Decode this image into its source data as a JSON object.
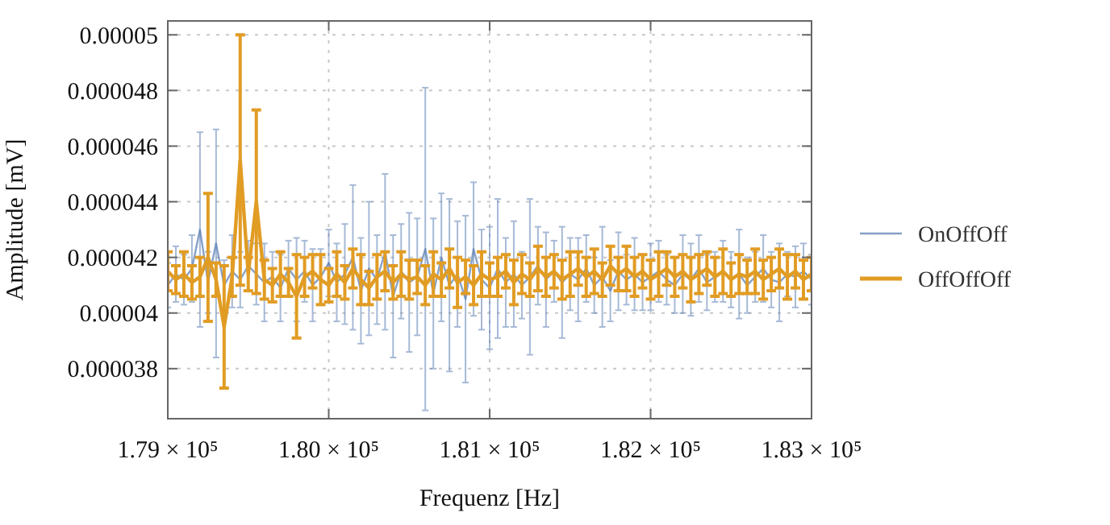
{
  "chart_data": {
    "type": "line",
    "xlabel": "Frequenz [Hz]",
    "ylabel": "Amplitude [mV]",
    "x": [
      179000,
      179050,
      179100,
      179150,
      179200,
      179250,
      179300,
      179350,
      179400,
      179450,
      179500,
      179550,
      179600,
      179650,
      179700,
      179750,
      179800,
      179850,
      179900,
      179950,
      180000,
      180050,
      180100,
      180150,
      180200,
      180250,
      180300,
      180350,
      180400,
      180450,
      180500,
      180550,
      180600,
      180650,
      180700,
      180750,
      180800,
      180850,
      180900,
      180950,
      181000,
      181050,
      181100,
      181150,
      181200,
      181250,
      181300,
      181350,
      181400,
      181450,
      181500,
      181550,
      181600,
      181650,
      181700,
      181750,
      181800,
      181850,
      181900,
      181950,
      182000,
      182050,
      182100,
      182150,
      182200,
      182250,
      182300,
      182350,
      182400,
      182450,
      182500,
      182550,
      182600,
      182650,
      182700,
      182750,
      182800,
      182850,
      182900,
      182950,
      183000
    ],
    "xlim": [
      179000,
      183000
    ],
    "xticks": [
      {
        "value": 179000,
        "label": "1.79 × 10⁵"
      },
      {
        "value": 180000,
        "label": "1.80 × 10⁵"
      },
      {
        "value": 181000,
        "label": "1.81 × 10⁵"
      },
      {
        "value": 182000,
        "label": "1.82 × 10⁵"
      },
      {
        "value": 183000,
        "label": "1.83 × 10⁵"
      }
    ],
    "ylim": [
      3.62e-05,
      5.05e-05
    ],
    "yticks": [
      {
        "value": 3.8e-05,
        "label": "0.000038"
      },
      {
        "value": 4e-05,
        "label": "0.00004"
      },
      {
        "value": 4.2e-05,
        "label": "0.000042"
      },
      {
        "value": 4.4e-05,
        "label": "0.000044"
      },
      {
        "value": 4.6e-05,
        "label": "0.000046"
      },
      {
        "value": 4.8e-05,
        "label": "0.000048"
      },
      {
        "value": 5e-05,
        "label": "0.00005"
      }
    ],
    "grid": true,
    "legend": "right",
    "marker": "none",
    "line_style": "solid",
    "series": [
      {
        "name": "OnOffOff",
        "color": "#5e81b5",
        "values": [
          4.1e-05,
          4.14e-05,
          4.12e-05,
          4.16e-05,
          4.3e-05,
          4.11e-05,
          4.25e-05,
          4.1e-05,
          4.15e-05,
          4.12e-05,
          4.17e-05,
          4.14e-05,
          4.11e-05,
          4.13e-05,
          4.09e-05,
          4.16e-05,
          4.12e-05,
          4.15e-05,
          4.1e-05,
          4.13e-05,
          4.18e-05,
          4.11e-05,
          4.14e-05,
          4.2e-05,
          4.08e-05,
          4.16e-05,
          4.12e-05,
          4.22e-05,
          4.06e-05,
          4.15e-05,
          4.11e-05,
          4.13e-05,
          4.23e-05,
          4.07e-05,
          4.2e-05,
          4.1e-05,
          4.14e-05,
          4.05e-05,
          4.23e-05,
          4.12e-05,
          4.09e-05,
          4.16e-05,
          4.11e-05,
          4.14e-05,
          4.1e-05,
          4.13e-05,
          4.17e-05,
          4.12e-05,
          4.15e-05,
          4.11e-05,
          4.14e-05,
          4.12e-05,
          4.16e-05,
          4.1e-05,
          4.13e-05,
          4.08e-05,
          4.15e-05,
          4.12e-05,
          4.14e-05,
          4.11e-05,
          4.13e-05,
          4.15e-05,
          4.12e-05,
          4.1e-05,
          4.14e-05,
          4.12e-05,
          4.16e-05,
          4.11e-05,
          4.13e-05,
          4.15e-05,
          4.12e-05,
          4.14e-05,
          4.1e-05,
          4.13e-05,
          4.16e-05,
          4.12e-05,
          4.11e-05,
          4.14e-05,
          4.13e-05,
          4.15e-05,
          4.12e-05
        ],
        "errors": [
          8e-07,
          1e-06,
          9e-07,
          1.2e-06,
          3.5e-06,
          1.1e-06,
          4.1e-06,
          9e-07,
          1.3e-06,
          1e-06,
          9e-07,
          1.1e-06,
          1.4e-06,
          9e-07,
          1.2e-06,
          1e-06,
          1.5e-06,
          1.1e-06,
          1.3e-06,
          1e-06,
          1.2e-06,
          1.4e-06,
          1.8e-06,
          2.6e-06,
          1.9e-06,
          2.4e-06,
          1.6e-06,
          2.8e-06,
          2.2e-06,
          1.7e-06,
          2.5e-06,
          2.1e-06,
          5.8e-06,
          2.7e-06,
          2.3e-06,
          3.1e-06,
          1.9e-06,
          3e-06,
          2.4e-06,
          1.8e-06,
          2.2e-06,
          2.5e-06,
          1.6e-06,
          1.9e-06,
          1.2e-06,
          2.8e-06,
          1.4e-06,
          1.7e-06,
          1.1e-06,
          2e-06,
          1.3e-06,
          1.5e-06,
          1.2e-06,
          1e-06,
          1.8e-06,
          1.1e-06,
          1.4e-06,
          9e-07,
          1.3e-06,
          1e-06,
          1.2e-06,
          1.1e-06,
          9e-07,
          1e-06,
          1.4e-06,
          1.3e-06,
          1.2e-06,
          1e-06,
          9e-07,
          1.1e-06,
          1e-06,
          1.6e-06,
          1e-06,
          9e-07,
          1.2e-06,
          1e-06,
          1.4e-06,
          8e-07,
          1.1e-06,
          1e-06,
          9e-07
        ]
      },
      {
        "name": "OffOffOff",
        "color": "#e19c24",
        "values": [
          4.15e-05,
          4.12e-05,
          4.14e-05,
          4.11e-05,
          4.13e-05,
          4.2e-05,
          4.12e-05,
          3.95e-05,
          4.13e-05,
          4.55e-05,
          4.14e-05,
          4.4e-05,
          4.12e-05,
          4.1e-05,
          4.14e-05,
          4.11e-05,
          4.06e-05,
          4.13e-05,
          4.15e-05,
          4.12e-05,
          4.1e-05,
          4.14e-05,
          4.11e-05,
          4.16e-05,
          4.12e-05,
          4.09e-05,
          4.13e-05,
          4.15e-05,
          4.11e-05,
          4.14e-05,
          4.12e-05,
          4.13e-05,
          4.1e-05,
          4.14e-05,
          4.12e-05,
          4.16e-05,
          4.11e-05,
          4.13e-05,
          4.1e-05,
          4.14e-05,
          4.12e-05,
          4.13e-05,
          4.15e-05,
          4.11e-05,
          4.14e-05,
          4.12e-05,
          4.16e-05,
          4.13e-05,
          4.15e-05,
          4.12e-05,
          4.14e-05,
          4.16e-05,
          4.13e-05,
          4.15e-05,
          4.12e-05,
          4.17e-05,
          4.14e-05,
          4.16e-05,
          4.13e-05,
          4.15e-05,
          4.12e-05,
          4.14e-05,
          4.16e-05,
          4.13e-05,
          4.15e-05,
          4.12e-05,
          4.14e-05,
          4.16e-05,
          4.13e-05,
          4.15e-05,
          4.12e-05,
          4.14e-05,
          4.13e-05,
          4.15e-05,
          4.12e-05,
          4.14e-05,
          4.16e-05,
          4.13e-05,
          4.15e-05,
          4.12e-05,
          4.14e-05
        ],
        "errors": [
          7e-07,
          5e-07,
          8e-07,
          6e-07,
          7e-07,
          2.3e-06,
          6e-07,
          2.2e-06,
          7e-07,
          4.5e-06,
          6e-07,
          3.3e-06,
          7e-07,
          6e-07,
          8e-07,
          5e-07,
          1.5e-06,
          7e-07,
          6e-07,
          9e-07,
          6e-07,
          8e-07,
          6e-07,
          7e-07,
          9e-07,
          6e-07,
          8e-07,
          7e-07,
          6e-07,
          8e-07,
          7e-07,
          6e-07,
          7e-07,
          8e-07,
          6e-07,
          7e-07,
          9e-07,
          6e-07,
          7e-07,
          8e-07,
          6e-07,
          7e-07,
          6e-07,
          8e-07,
          7e-07,
          6e-07,
          8e-07,
          7e-07,
          6e-07,
          7e-07,
          8e-07,
          6e-07,
          7e-07,
          8e-07,
          6e-07,
          7e-07,
          6e-07,
          8e-07,
          7e-07,
          6e-07,
          7e-07,
          8e-07,
          6e-07,
          7e-07,
          6e-07,
          8e-07,
          7e-07,
          6e-07,
          7e-07,
          8e-07,
          6e-07,
          7e-07,
          6e-07,
          8e-07,
          7e-07,
          6e-07,
          7e-07,
          8e-07,
          6e-07,
          7e-07,
          6e-07
        ]
      }
    ]
  }
}
